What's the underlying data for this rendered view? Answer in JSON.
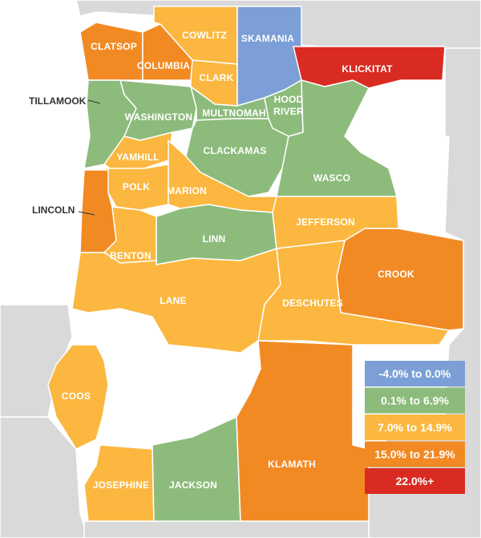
{
  "colors": {
    "background": "#ffffff",
    "neighbor": "#d9d9d9",
    "border": "#ffffff"
  },
  "legend": [
    {
      "label": "-4.0% to 0.0%",
      "color": "#7b9fd6"
    },
    {
      "label": "0.1% to 6.9%",
      "color": "#8dbb7b"
    },
    {
      "label": "7.0% to 14.9%",
      "color": "#fbb73f"
    },
    {
      "label": "15.0% to 21.9%",
      "color": "#f28a24"
    },
    {
      "label": "22.0%+",
      "color": "#d92b22"
    }
  ],
  "counties": {
    "clatsop": {
      "name": "CLATSOP",
      "color": "#f28a24"
    },
    "columbia": {
      "name": "COLUMBIA",
      "color": "#f28a24"
    },
    "cowlitz": {
      "name": "COWLITZ",
      "color": "#fbb73f"
    },
    "skamania": {
      "name": "SKAMANIA",
      "color": "#7b9fd6"
    },
    "klickitat": {
      "name": "KLICKITAT",
      "color": "#d92b22"
    },
    "clark": {
      "name": "CLARK",
      "color": "#fbb73f"
    },
    "tillamook": {
      "name": "TILLAMOOK",
      "color": "#8dbb7b"
    },
    "washington": {
      "name": "WASHINGTON",
      "color": "#8dbb7b"
    },
    "multnomah": {
      "name": "MULTNOMAH",
      "color": "#8dbb7b"
    },
    "hood_river": {
      "name_line1": "HOOD",
      "name_line2": "RIVER",
      "color": "#8dbb7b"
    },
    "yamhill": {
      "name": "YAMHILL",
      "color": "#fbb73f"
    },
    "clackamas": {
      "name": "CLACKAMAS",
      "color": "#8dbb7b"
    },
    "wasco": {
      "name": "WASCO",
      "color": "#8dbb7b"
    },
    "polk": {
      "name": "POLK",
      "color": "#fbb73f"
    },
    "marion": {
      "name": "MARION",
      "color": "#fbb73f"
    },
    "lincoln": {
      "name": "LINCOLN",
      "color": "#f28a24"
    },
    "jefferson": {
      "name": "JEFFERSON",
      "color": "#fbb73f"
    },
    "linn": {
      "name": "LINN",
      "color": "#8dbb7b"
    },
    "benton": {
      "name": "BENTON",
      "color": "#fbb73f"
    },
    "crook": {
      "name": "CROOK",
      "color": "#f28a24"
    },
    "lane": {
      "name": "LANE",
      "color": "#fbb73f"
    },
    "deschutes": {
      "name": "DESCHUTES",
      "color": "#fbb73f"
    },
    "coos": {
      "name": "COOS",
      "color": "#fbb73f"
    },
    "klamath": {
      "name": "KLAMATH",
      "color": "#f28a24"
    },
    "josephine": {
      "name": "JOSEPHINE",
      "color": "#fbb73f"
    },
    "jackson": {
      "name": "JACKSON",
      "color": "#8dbb7b"
    }
  }
}
